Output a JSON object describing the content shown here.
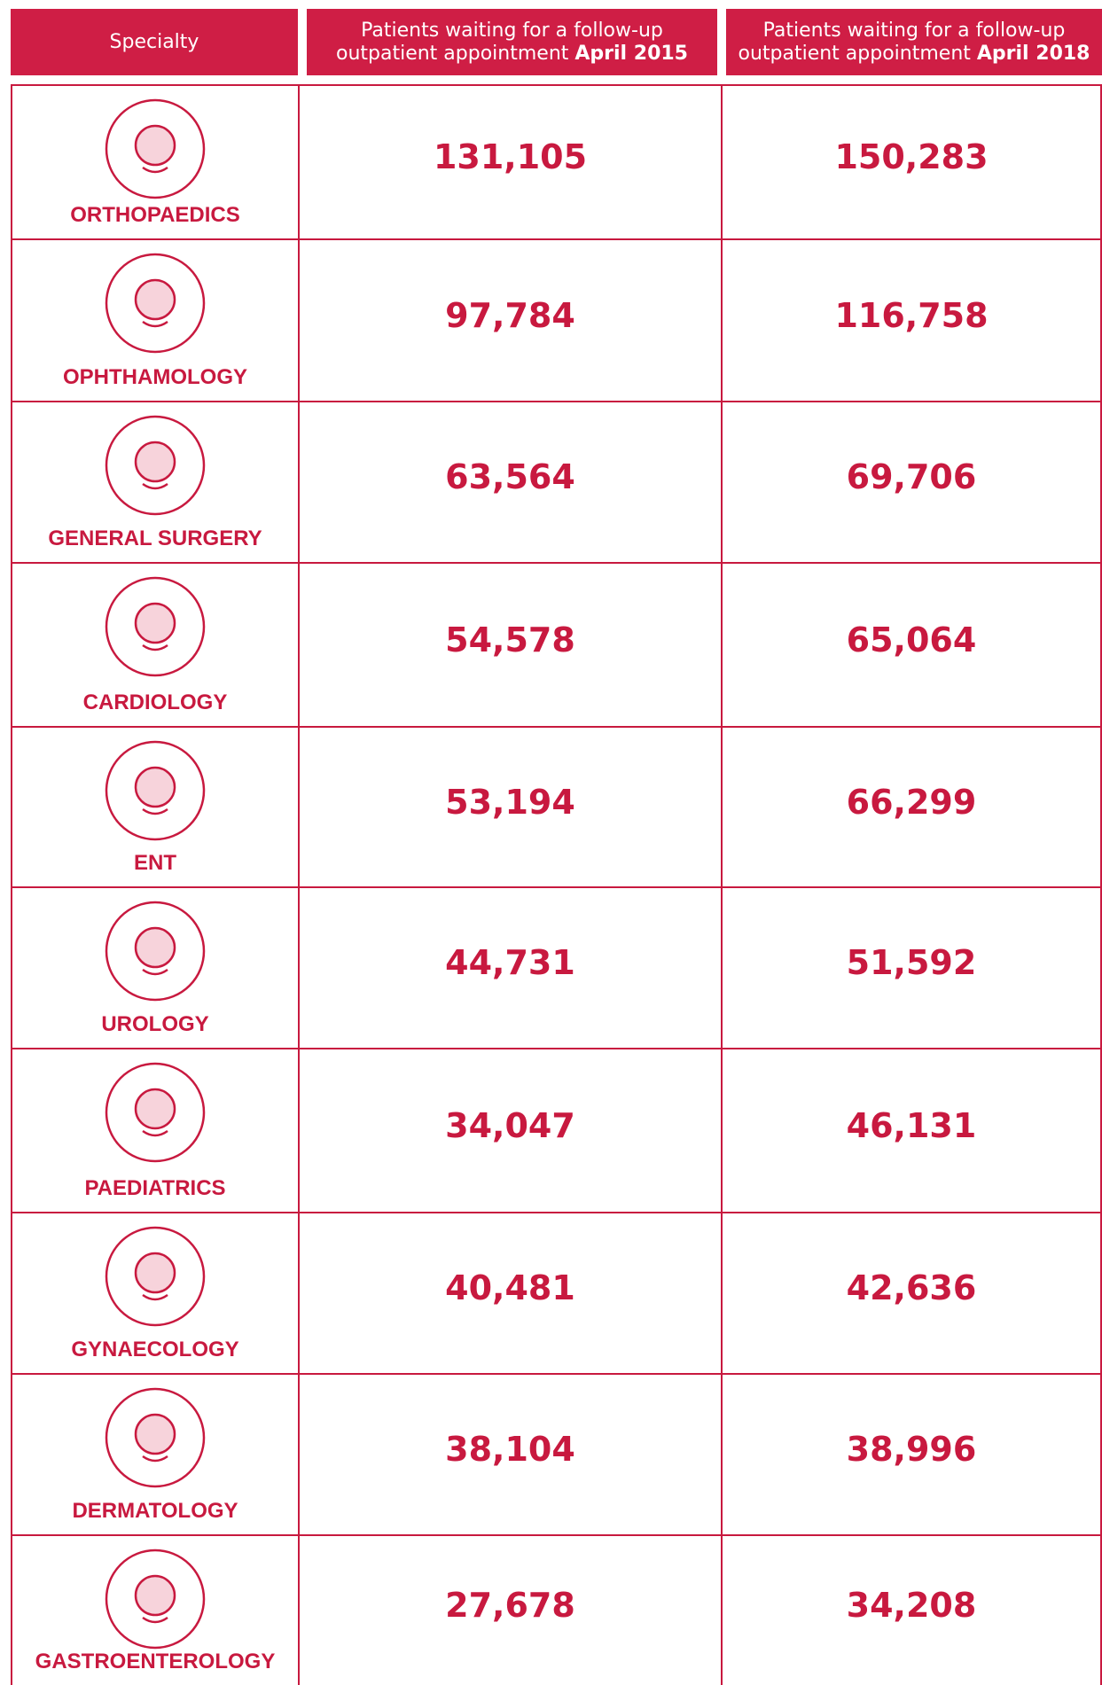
{
  "table": {
    "header": [
      {
        "text": "Specialty"
      },
      {
        "line1": "Patients waiting for a follow-up",
        "line2": "outpatient appointment",
        "bold": "April 2015"
      },
      {
        "line1": "Patients waiting for a follow-up",
        "line2": "outpatient appointment",
        "bold": "April 2018"
      }
    ],
    "rows": [
      [
        "ORTHOPAEDICS",
        "131,105",
        "150,283"
      ],
      [
        "OPHTHAMOLOGY",
        "97,784",
        "116,758"
      ],
      [
        "GENERAL SURGERY",
        "63,564",
        "69,706"
      ],
      [
        "CARDIOLOGY",
        "54,578",
        "65,064"
      ],
      [
        "ENT",
        "53,194",
        "66,299"
      ],
      [
        "UROLOGY",
        "44,731",
        "51,592"
      ],
      [
        "PAEDIATRICS",
        "34,047",
        "46,131"
      ],
      [
        "GYNAECOLOGY",
        "40,481",
        "42,636"
      ],
      [
        "DERMATOLOGY",
        "38,104",
        "38,996"
      ],
      [
        "GASTROENTEROLOGY",
        "27,678",
        "34,208"
      ]
    ]
  }
}
